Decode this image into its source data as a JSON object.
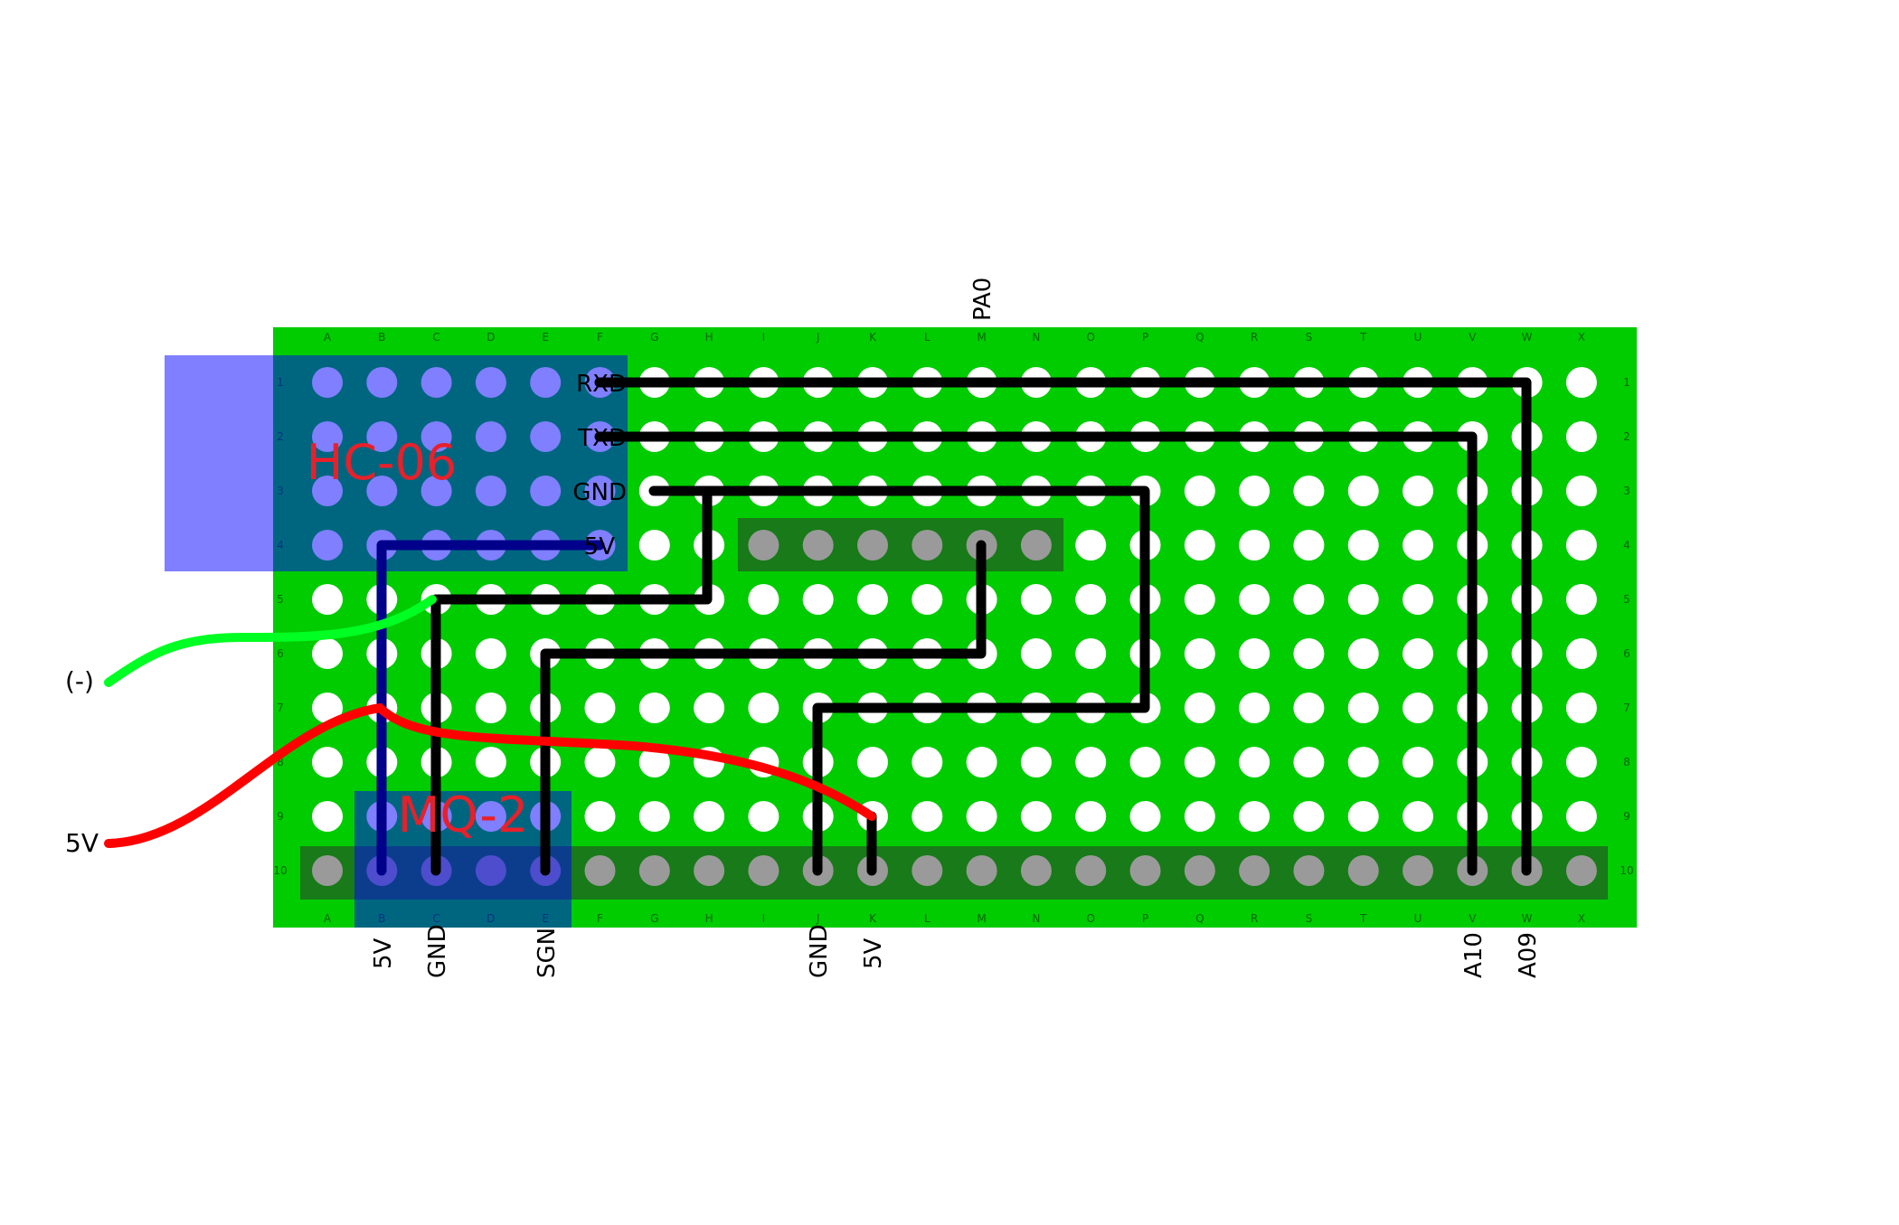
{
  "board": {
    "columns": [
      "A",
      "B",
      "C",
      "D",
      "E",
      "F",
      "G",
      "H",
      "I",
      "J",
      "K",
      "L",
      "M",
      "N",
      "O",
      "P",
      "Q",
      "R",
      "S",
      "T",
      "U",
      "V",
      "W",
      "X"
    ],
    "rows": [
      "1",
      "2",
      "3",
      "4",
      "5",
      "6",
      "7",
      "8",
      "9",
      "10"
    ]
  },
  "modules": {
    "hc06": {
      "name": "HC-06",
      "pins": [
        "RXD",
        "TXD",
        "GND",
        "5V"
      ]
    },
    "mq2": {
      "name": "MQ-2"
    }
  },
  "labels": {
    "top": [
      "PA0"
    ],
    "bottom": [
      "5V",
      "GND",
      "SGN",
      "GND",
      "5V",
      "A10",
      "A09"
    ],
    "left": [
      "(-)",
      "5V"
    ]
  },
  "colors": {
    "board": "#00cc00",
    "hole": "#ffffff",
    "hc06_module": "#0000ff",
    "module_label": "#e8202a",
    "wire_black": "#000000",
    "wire_blue": "#00008b",
    "wire_red": "#ff0000",
    "wire_green": "#00ff22",
    "header": "#1c6b1c",
    "header_pin": "#9a9a9a"
  }
}
